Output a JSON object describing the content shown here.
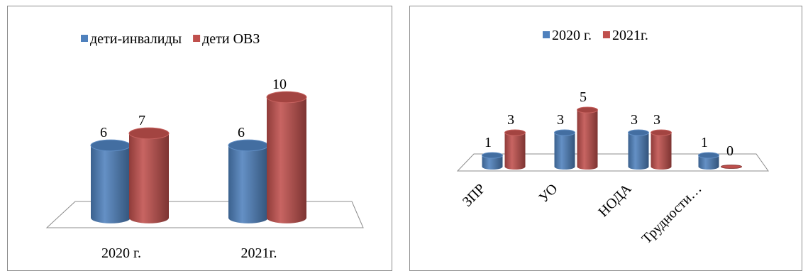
{
  "colors": {
    "series_1": "#4f81bd",
    "series_2": "#c0504d"
  },
  "chart_data": [
    {
      "type": "bar",
      "style": "3d-cylinder",
      "categories": [
        "2020 г.",
        "2021г."
      ],
      "series": [
        {
          "name": "дети-инвалиды",
          "values": [
            6,
            6
          ]
        },
        {
          "name": "дети ОВЗ",
          "values": [
            7,
            10
          ]
        }
      ],
      "legend": "top",
      "grid": false
    },
    {
      "type": "bar",
      "style": "3d-cylinder",
      "categories": [
        "ЗПР",
        "УО",
        "НОДА",
        "Трудности…"
      ],
      "series": [
        {
          "name": "2020 г.",
          "values": [
            1,
            3,
            3,
            1
          ]
        },
        {
          "name": "2021г.",
          "values": [
            3,
            5,
            3,
            0
          ]
        }
      ],
      "legend": "top",
      "grid": false
    }
  ]
}
